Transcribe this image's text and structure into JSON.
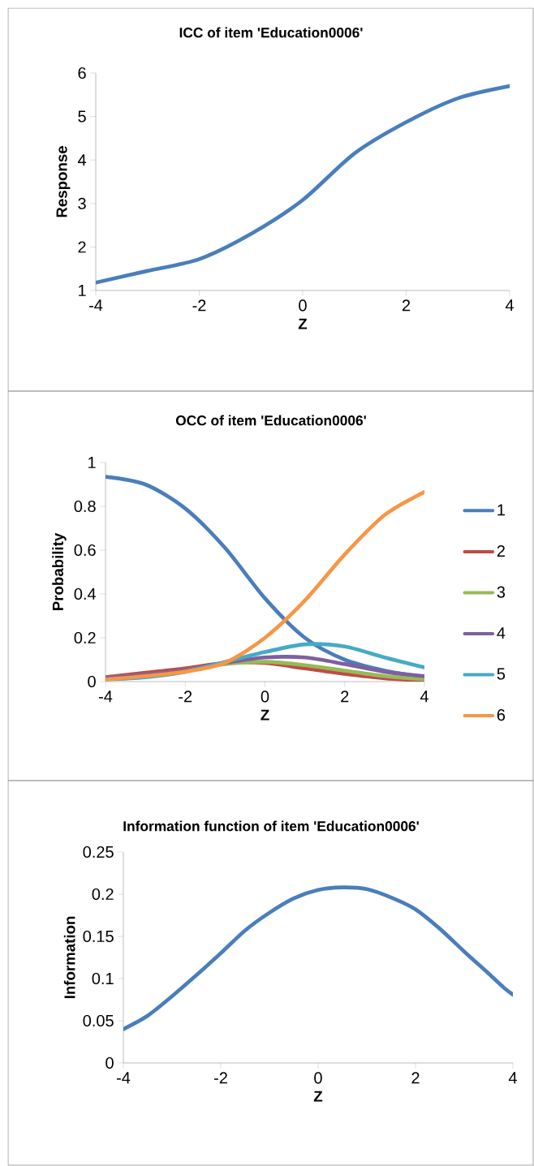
{
  "chart_data": [
    {
      "type": "line",
      "title": "ICC of item 'Education0006'",
      "xlabel": "Z",
      "ylabel": "Response",
      "color": "#4a7ebb",
      "x": [
        -4,
        -3,
        -2,
        -1,
        0,
        1,
        2,
        3,
        4
      ],
      "values": [
        1.18,
        1.45,
        1.72,
        2.3,
        3.08,
        4.15,
        4.87,
        5.42,
        5.7
      ],
      "xlim": [
        -4,
        4
      ],
      "xticks": [
        -4,
        -2,
        0,
        2,
        4
      ],
      "ylim": [
        1,
        6
      ],
      "yticks": [
        1,
        2,
        3,
        4,
        5,
        6
      ],
      "grid": false,
      "legend": false,
      "marker": "none",
      "line_style": "solid"
    },
    {
      "type": "line",
      "title": "OCC of item 'Education0006'",
      "xlabel": "Z",
      "ylabel": "Probability",
      "x": [
        -4,
        -3,
        -2,
        -1,
        0,
        1,
        2,
        3,
        4
      ],
      "series": [
        {
          "name": "1",
          "color": "#4a7ebb",
          "values": [
            0.935,
            0.9,
            0.79,
            0.61,
            0.38,
            0.2,
            0.1,
            0.05,
            0.02
          ]
        },
        {
          "name": "2",
          "color": "#be4b48",
          "values": [
            0.02,
            0.04,
            0.06,
            0.085,
            0.085,
            0.06,
            0.035,
            0.015,
            0.005
          ]
        },
        {
          "name": "3",
          "color": "#98b954",
          "values": [
            0.015,
            0.03,
            0.05,
            0.08,
            0.09,
            0.075,
            0.05,
            0.025,
            0.01
          ]
        },
        {
          "name": "4",
          "color": "#7d60a0",
          "values": [
            0.015,
            0.03,
            0.05,
            0.085,
            0.11,
            0.11,
            0.08,
            0.045,
            0.025
          ]
        },
        {
          "name": "5",
          "color": "#46aac5",
          "values": [
            0.01,
            0.02,
            0.045,
            0.09,
            0.135,
            0.17,
            0.16,
            0.11,
            0.065
          ]
        },
        {
          "name": "6",
          "color": "#f79646",
          "values": [
            0.01,
            0.025,
            0.045,
            0.086,
            0.2,
            0.37,
            0.58,
            0.76,
            0.865
          ]
        }
      ],
      "xlim": [
        -4,
        4
      ],
      "xticks": [
        -4,
        -2,
        0,
        2,
        4
      ],
      "ylim": [
        0,
        1
      ],
      "yticks": [
        0,
        0.2,
        0.4,
        0.6,
        0.8,
        1
      ],
      "grid": false,
      "legend": "right",
      "marker": "none",
      "line_style": "solid"
    },
    {
      "type": "line",
      "title": "Information function of item 'Education0006'",
      "xlabel": "Z",
      "ylabel": "Information",
      "color": "#4a7ebb",
      "x": [
        -4,
        -3.5,
        -3,
        -2.5,
        -2,
        -1.5,
        -1,
        -0.5,
        0,
        0.5,
        1,
        1.5,
        2,
        2.5,
        3,
        3.5,
        3.8,
        4
      ],
      "values": [
        0.04,
        0.056,
        0.079,
        0.104,
        0.13,
        0.157,
        0.178,
        0.195,
        0.205,
        0.208,
        0.206,
        0.196,
        0.182,
        0.159,
        0.132,
        0.106,
        0.09,
        0.081
      ],
      "xlim": [
        -4,
        4
      ],
      "xticks": [
        -4,
        -2,
        0,
        2,
        4
      ],
      "ylim": [
        0,
        0.25
      ],
      "yticks": [
        0,
        0.05,
        0.1,
        0.15,
        0.2,
        0.25
      ],
      "grid": false,
      "legend": false,
      "marker": "none",
      "line_style": "solid"
    }
  ]
}
